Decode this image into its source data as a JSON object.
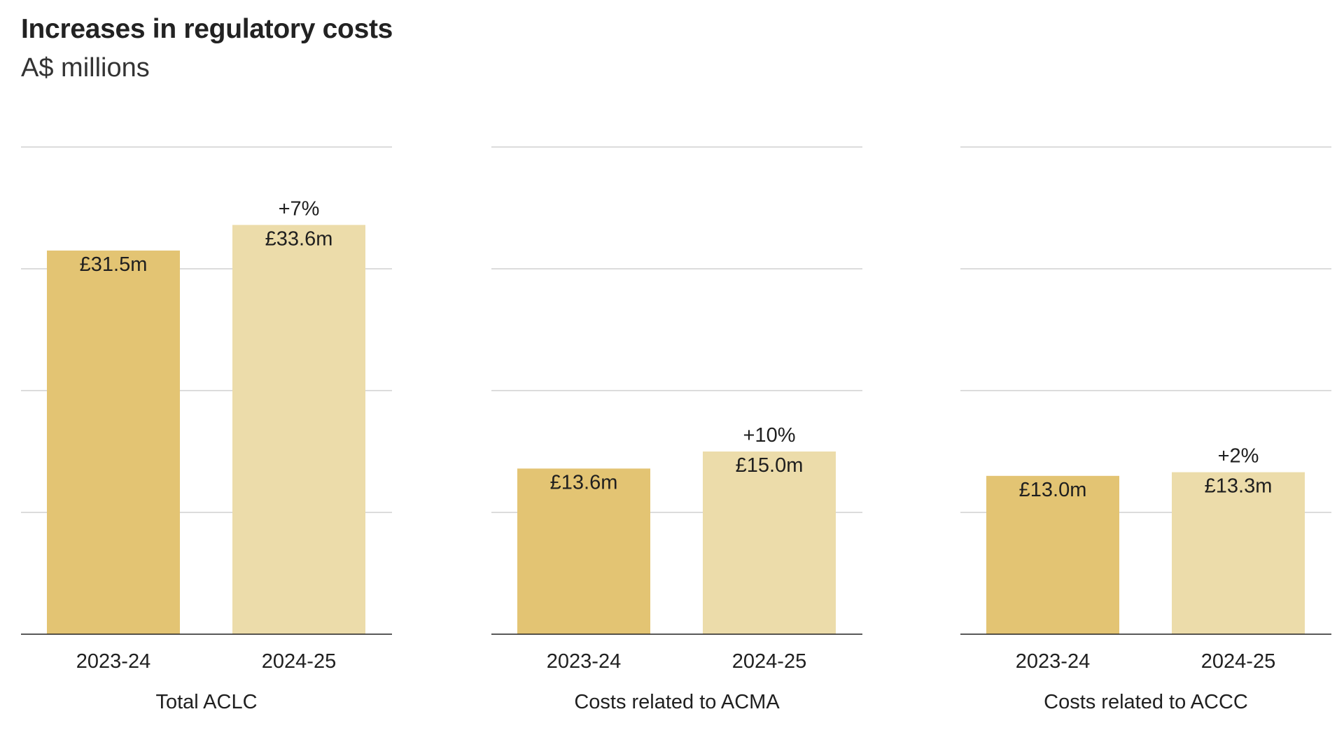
{
  "chart_data": [
    {
      "type": "bar",
      "title": "Increases in regulatory costs",
      "subtitle": "A$ millions",
      "panel_label": "Total ACLC",
      "categories": [
        "2023-24",
        "2024-25"
      ],
      "values": [
        31.5,
        33.6
      ],
      "value_labels": [
        "£31.5m",
        "£33.6m"
      ],
      "change_labels": [
        "",
        "+7%"
      ],
      "ylim": [
        0,
        40
      ],
      "grid": true
    },
    {
      "type": "bar",
      "panel_label": "Costs related to ACMA",
      "categories": [
        "2023-24",
        "2024-25"
      ],
      "values": [
        13.6,
        15.0
      ],
      "value_labels": [
        "£13.6m",
        "£15.0m"
      ],
      "change_labels": [
        "",
        "+10%"
      ],
      "ylim": [
        0,
        40
      ],
      "grid": true
    },
    {
      "type": "bar",
      "panel_label": "Costs related to ACCC",
      "categories": [
        "2023-24",
        "2024-25"
      ],
      "values": [
        13.0,
        13.3
      ],
      "value_labels": [
        "£13.0m",
        "£13.3m"
      ],
      "change_labels": [
        "",
        "+2%"
      ],
      "ylim": [
        0,
        40
      ],
      "grid": true
    }
  ],
  "colors": {
    "bar_first": "#e3c473",
    "bar_second": "#ecdcaa",
    "gridline": "#c8c8c8",
    "baseline": "#222222",
    "text": "#1f1f1f"
  }
}
